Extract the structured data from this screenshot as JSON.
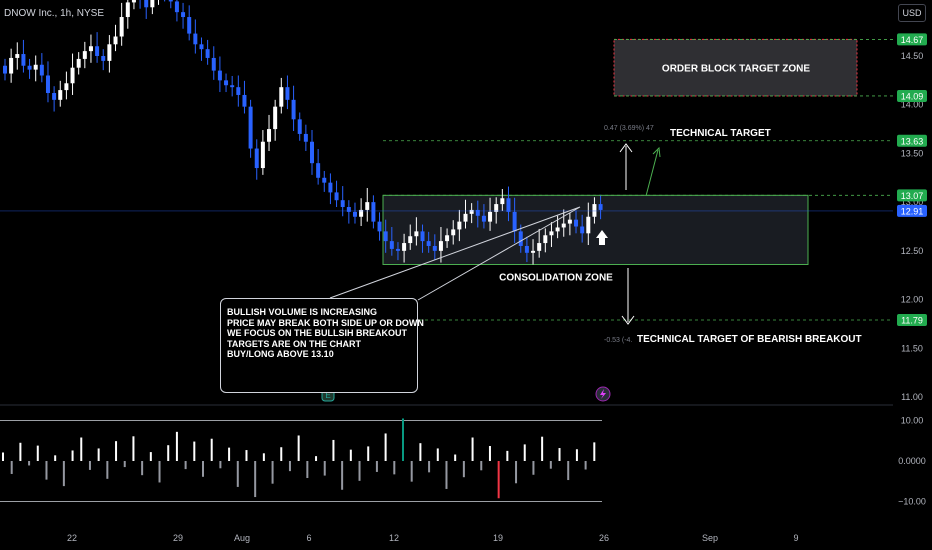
{
  "header": {
    "symbol_title": "DNOW Inc., 1h, NYSE",
    "currency_button": "USD"
  },
  "colors": {
    "background": "#000000",
    "up_candle": "#ffffff",
    "down_candle": "#2962ff",
    "zone_border": "#4caf50",
    "zone_fill": "#2a2e39",
    "target_line": "#4caf50",
    "target_label_bg": "#22ab4f",
    "price_label_bg": "#2962ff",
    "ob_border": "#f23645",
    "osc_up": "#ffffff",
    "osc_down": "#9598a1",
    "osc_extreme_up": "#089981",
    "osc_extreme_down": "#f23645"
  },
  "chart_data": {
    "type": "candlestick",
    "title": "DNOW Inc., 1h, NYSE",
    "y_axis": {
      "ticks": [
        11.0,
        11.5,
        12.0,
        12.5,
        13.0,
        13.5,
        14.0,
        14.5
      ],
      "tick_labels": [
        "11.00",
        "11.50",
        "12.00",
        "12.50",
        "13.00",
        "13.50",
        "14.00",
        "14.50"
      ]
    },
    "x_axis": {
      "tick_labels": [
        "22",
        "29",
        "Aug",
        "6",
        "12",
        "19",
        "26",
        "Sep",
        "9"
      ]
    },
    "price_levels": [
      {
        "label": "14.67",
        "value": 14.67
      },
      {
        "label": "14.09",
        "value": 14.09
      },
      {
        "label": "13.63",
        "value": 13.63
      },
      {
        "label": "13.07",
        "value": 13.07
      },
      {
        "label": "12.91",
        "value": 12.91,
        "current": true
      },
      {
        "label": "11.79",
        "value": 11.79
      }
    ],
    "zones": [
      {
        "name": "ORDER BLOCK TARGET ZONE",
        "top": 14.67,
        "bottom": 14.09
      },
      {
        "name": "CONSOLIDATION ZONE",
        "top": 13.07,
        "bottom": 12.36
      }
    ],
    "annotations": {
      "technical_target": "TECHNICAL TARGET",
      "bearish_target": "TECHNICAL TARGET OF BEARISH BREAKOUT",
      "up_measure": "0.47 (3.69%) 47",
      "down_measure": "-0.53 (-4."
    },
    "closes": [
      14.32,
      14.48,
      14.52,
      14.4,
      14.36,
      14.41,
      14.3,
      14.12,
      14.05,
      14.15,
      14.22,
      14.38,
      14.47,
      14.55,
      14.6,
      14.5,
      14.45,
      14.62,
      14.7,
      14.9,
      15.05,
      15.1,
      15.08,
      15.0,
      15.12,
      15.2,
      15.18,
      15.06,
      14.95,
      14.9,
      14.73,
      14.62,
      14.57,
      14.48,
      14.35,
      14.25,
      14.2,
      14.18,
      14.1,
      13.98,
      13.55,
      13.35,
      13.62,
      13.75,
      13.98,
      14.18,
      14.05,
      13.85,
      13.7,
      13.62,
      13.4,
      13.25,
      13.2,
      13.1,
      13.02,
      12.95,
      12.9,
      12.85,
      12.92,
      13.0,
      12.8,
      12.7,
      12.6,
      12.52,
      12.5,
      12.58,
      12.65,
      12.7,
      12.6,
      12.55,
      12.5,
      12.6,
      12.66,
      12.72,
      12.8,
      12.88,
      12.92,
      12.86,
      12.8,
      12.9,
      12.98,
      13.04,
      12.9,
      12.7,
      12.55,
      12.48,
      12.5,
      12.58,
      12.66,
      12.7,
      12.74,
      12.78,
      12.82,
      12.75,
      12.68,
      12.85,
      12.98,
      12.92
    ],
    "oscillator": {
      "ticks": [
        10.0,
        0.0,
        -10.0
      ],
      "tick_labels": [
        "10.00",
        "0.0000",
        "−10.00"
      ],
      "values": [
        2.1,
        -3.2,
        4.5,
        -1.1,
        3.8,
        -4.6,
        1.4,
        -6.2,
        2.6,
        5.8,
        -2.2,
        3.1,
        -4.4,
        4.9,
        -1.5,
        6.1,
        -3.5,
        2.2,
        -5.3,
        3.9,
        7.2,
        -2.0,
        4.8,
        -3.9,
        5.5,
        -1.8,
        3.3,
        -6.4,
        2.7,
        -8.9,
        1.9,
        -5.6,
        3.4,
        -2.5,
        6.3,
        -4.2,
        1.2,
        -3.6,
        5.2,
        -7.1,
        2.8,
        -4.9,
        3.6,
        -2.7,
        6.8,
        -3.3,
        10.5,
        -5.1,
        4.4,
        -2.8,
        3.1,
        -6.9,
        1.6,
        -4.0,
        5.8,
        -2.3,
        3.7,
        -9.2,
        2.5,
        -5.5,
        4.1,
        -3.4,
        6.0,
        -1.9,
        3.2,
        -4.7,
        2.9,
        -2.1,
        4.6
      ]
    }
  },
  "note": {
    "lines": [
      "BULLISH VOLUME IS INCREASING",
      "PRICE MAY BREAK BOTH SIDE UP OR DOWN",
      "WE FOCUS ON THE BULLSIH BREAKOUT",
      "TARGETS ARE ON THE CHART",
      "BUY/LONG  ABOVE 13.10"
    ]
  }
}
